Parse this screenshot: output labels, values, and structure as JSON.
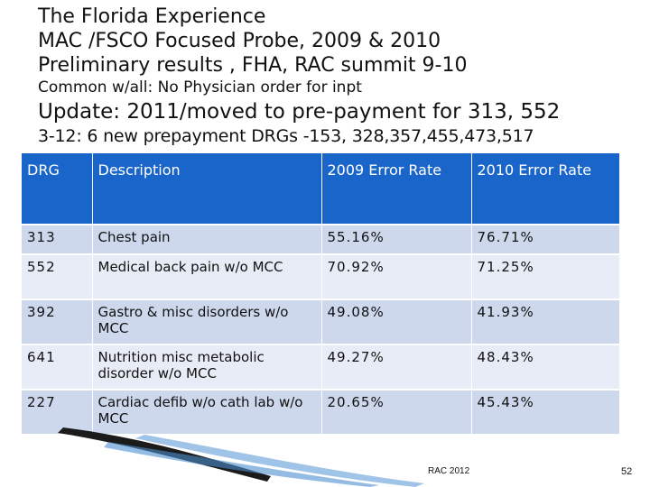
{
  "title_lines": [
    "The Florida Experience",
    "MAC /FSCO Focused Probe, 2009 & 2010",
    "Preliminary results , FHA, RAC summit 9-10",
    "Common w/all: No Physician order for inpt",
    "Update: 2011/moved to pre-payment for 313, 552",
    "3-12: 6 new prepayment DRGs -153, 328,357,455,473,517"
  ],
  "table": {
    "headers": [
      "DRG",
      "Description",
      "2009 Error Rate",
      "2010 Error Rate"
    ],
    "rows": [
      {
        "drg": "313",
        "description": "Chest pain",
        "rate_2009": "55.16%",
        "rate_2010": "76.71%"
      },
      {
        "drg": "552",
        "description": "Medical back pain w/o MCC",
        "rate_2009": "70.92%",
        "rate_2010": "71.25%"
      },
      {
        "drg": "392",
        "description": "Gastro  & misc disorders w/o MCC",
        "rate_2009": "49.08%",
        "rate_2010": "41.93%"
      },
      {
        "drg": "641",
        "description": "Nutrition misc metabolic disorder w/o MCC",
        "rate_2009": "49.27%",
        "rate_2010": "48.43%"
      },
      {
        "drg": "227",
        "description": "Cardiac defib w/o cath lab w/o MCC",
        "rate_2009": "20.65%",
        "rate_2010": "45.43%"
      }
    ]
  },
  "footer": {
    "text": "RAC 2012",
    "page_number": "52"
  },
  "colors": {
    "header_bg": "#1a65c9",
    "row_odd": "#cdd8ed",
    "row_even": "#e7ecf6",
    "swoosh_dark": "#1b1b1b",
    "swoosh_light": "#7fb0e0"
  }
}
